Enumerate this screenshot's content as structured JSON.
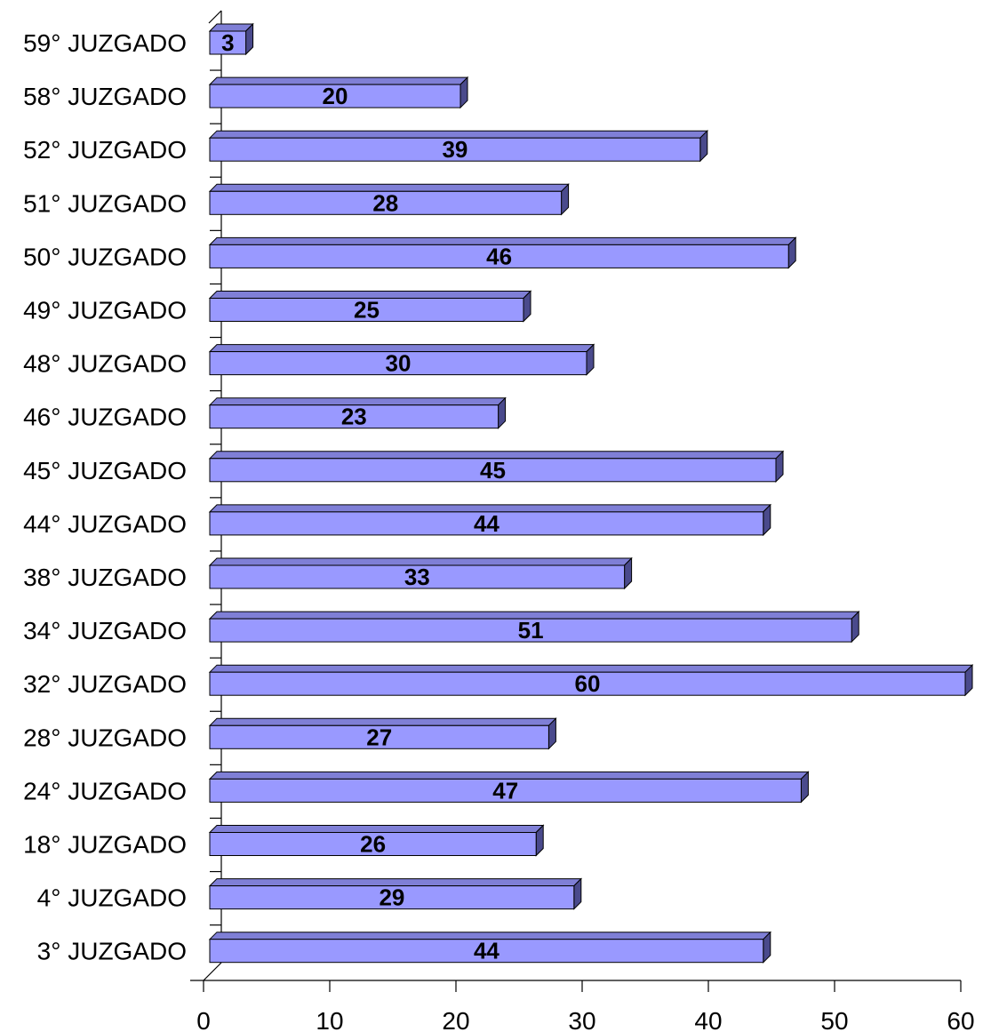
{
  "chart_data": {
    "type": "bar",
    "orientation": "horizontal",
    "style": "3d",
    "categories": [
      "59° JUZGADO",
      "58° JUZGADO",
      "52° JUZGADO",
      "51° JUZGADO",
      "50° JUZGADO",
      "49° JUZGADO",
      "48° JUZGADO",
      "46° JUZGADO",
      "45° JUZGADO",
      "44° JUZGADO",
      "38° JUZGADO",
      "34° JUZGADO",
      "32° JUZGADO",
      "28° JUZGADO",
      "24° JUZGADO",
      "18° JUZGADO",
      "4° JUZGADO",
      "3° JUZGADO"
    ],
    "values": [
      3,
      20,
      39,
      28,
      46,
      25,
      30,
      23,
      45,
      44,
      33,
      51,
      60,
      27,
      47,
      26,
      29,
      44
    ],
    "xlim": [
      0,
      60
    ],
    "xticks": [
      "0",
      "10",
      "20",
      "30",
      "40",
      "50",
      "60"
    ],
    "title": "",
    "xlabel": "",
    "ylabel": "",
    "grid": false,
    "legend": "none",
    "colors": {
      "bar_front": "#9999ff",
      "bar_top": "#7f7fd6",
      "bar_side": "#4a4a8c",
      "outline": "#000000"
    }
  }
}
